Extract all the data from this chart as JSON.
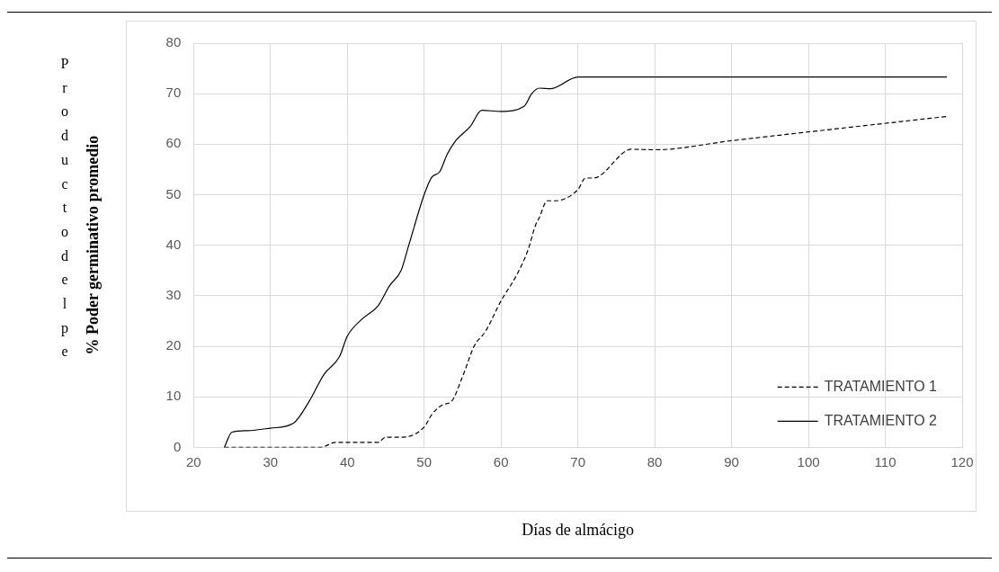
{
  "chart_data": {
    "type": "line",
    "xlabel": "Días de almácigo",
    "ylabel": "% Poder germinativo promedio",
    "annotations": [
      "Productodelpe"
    ],
    "xlim": [
      20,
      120
    ],
    "xticks": [
      20,
      30,
      40,
      50,
      60,
      70,
      80,
      90,
      100,
      110,
      120
    ],
    "ylim": [
      0,
      80
    ],
    "yticks": [
      0,
      10,
      20,
      30,
      40,
      50,
      60,
      70,
      80
    ],
    "grid": true,
    "legend": "bottom right",
    "marker": "none",
    "series": [
      {
        "name": "TRATAMIENTO 1",
        "color": "#000000",
        "line_style": "dashed",
        "x": [
          24,
          36.5,
          38.5,
          40,
          44,
          45,
          47,
          50,
          51,
          52.5,
          53.5,
          55,
          56.5,
          58,
          60,
          62,
          63.5,
          64.5,
          65,
          66,
          67,
          70,
          71,
          72,
          77,
          80,
          90,
          118
        ],
        "values": [
          0,
          0,
          1,
          1,
          1,
          2,
          2,
          4,
          6.5,
          8.5,
          9,
          14,
          20,
          23,
          29,
          34,
          39,
          44,
          45.5,
          48.8,
          48.8,
          51,
          53.3,
          53.3,
          59,
          58.9,
          60.7,
          65.5
        ]
      },
      {
        "name": "TRATAMIENTO 2",
        "color": "#000000",
        "line_style": "solid",
        "x": [
          24,
          25,
          27,
          30,
          33,
          35,
          37,
          39,
          40,
          42,
          44,
          45.5,
          47,
          48,
          50,
          51,
          52,
          53,
          54,
          56,
          57.5,
          60,
          63,
          64,
          65,
          66.5,
          70,
          118
        ],
        "values": [
          0,
          3,
          3.3,
          3.8,
          4.8,
          9,
          14.5,
          18,
          22,
          25.5,
          28,
          32,
          35,
          40,
          50,
          53.5,
          54.5,
          58,
          60.5,
          63.5,
          66.7,
          66.5,
          67.5,
          70,
          71.1,
          71,
          73.3,
          73.3
        ]
      }
    ]
  }
}
